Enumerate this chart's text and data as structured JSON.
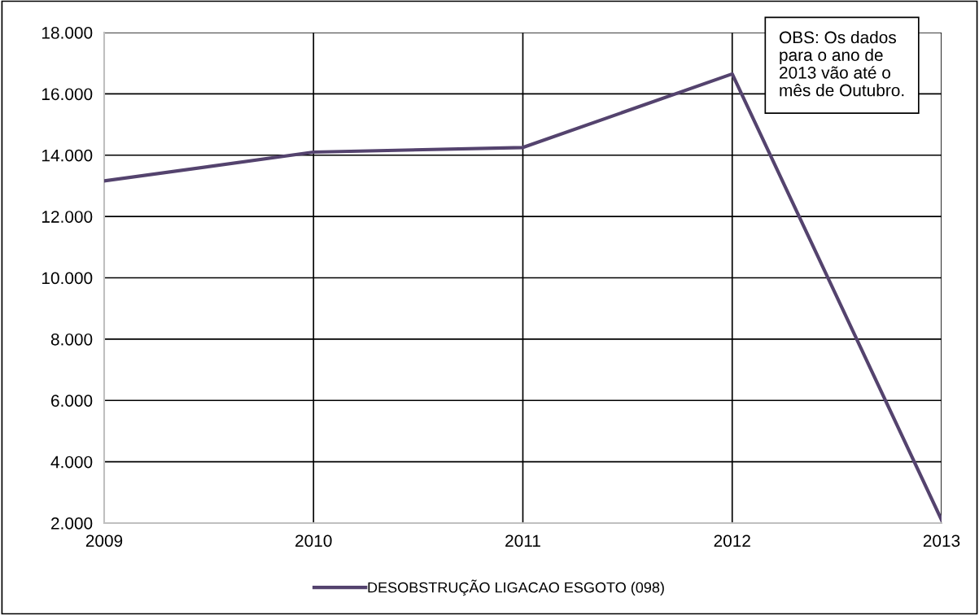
{
  "chart_data": {
    "type": "line",
    "x": [
      2009,
      2010,
      2011,
      2012,
      2013
    ],
    "series": [
      {
        "name": "DESOBSTRUÇÃO LIGACAO ESGOTO (098)",
        "color": "#54436e",
        "values": [
          13160,
          14100,
          14250,
          16650,
          2100
        ]
      }
    ],
    "xlim": [
      2009,
      2013
    ],
    "xticks": [
      2009,
      2010,
      2011,
      2012,
      2013
    ],
    "ylim": [
      2000,
      18000
    ],
    "yticks": [
      {
        "value": 2000,
        "label": "2.000"
      },
      {
        "value": 4000,
        "label": "4.000"
      },
      {
        "value": 6000,
        "label": "6.000"
      },
      {
        "value": 8000,
        "label": "8.000"
      },
      {
        "value": 10000,
        "label": "10.000"
      },
      {
        "value": 12000,
        "label": "12.000"
      },
      {
        "value": 14000,
        "label": "14.000"
      },
      {
        "value": 16000,
        "label": "16.000"
      },
      {
        "value": 18000,
        "label": "18.000"
      }
    ],
    "grid": true,
    "legend": "bottom",
    "marker": "none",
    "line_style": "solid",
    "annotations": [
      "OBS: Os dados\npara o ano de\n2013 vão até o\nmês de Outubro."
    ]
  }
}
